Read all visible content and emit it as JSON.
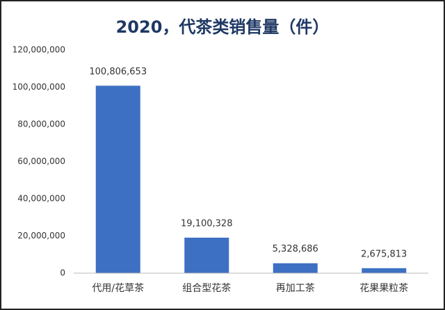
{
  "chart_data": {
    "type": "bar",
    "title": "2020，代茶类销售量（件）",
    "categories": [
      "代用/花草茶",
      "组合型花茶",
      "再加工茶",
      "花果果粒茶"
    ],
    "values": [
      100806653,
      19100328,
      5328686,
      2675813
    ],
    "value_labels": [
      "100,806,653",
      "19,100,328",
      "5,328,686",
      "2,675,813"
    ],
    "color": "#3d70c2",
    "ylim": [
      0,
      120000000
    ],
    "yticks": [
      0,
      {
        "value": 20000000,
        "label": "20,000,000"
      },
      {
        "value": 40000000,
        "label": "40,000,000"
      },
      {
        "value": 60000000,
        "label": "60,000,000"
      },
      {
        "value": 80000000,
        "label": "80,000,000"
      },
      {
        "value": 100000000,
        "label": "100,000,000"
      },
      {
        "value": 120000000,
        "label": "120,000,000"
      }
    ],
    "grid": false
  }
}
